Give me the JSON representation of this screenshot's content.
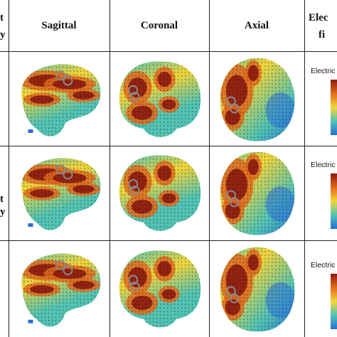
{
  "table": {
    "headers": {
      "left_partial_top": "t",
      "left_partial_bottom": "y",
      "sagittal": "Sagittal",
      "coronal": "Coronal",
      "axial": "Axial",
      "right_partial_top": "Elec",
      "right_partial_bottom": "fi"
    },
    "row_edge_marks": [
      "t",
      "y"
    ],
    "colorbar_labels": [
      "Electric",
      "Electric",
      "Electric f"
    ]
  },
  "colors": {
    "high": "#8b1a10",
    "mid_high": "#e06a1c",
    "mid": "#f2d43a",
    "mid_low": "#52c3b4",
    "low": "#2a6fd8",
    "arrow": "#111111",
    "marker": "#8a8a8a"
  }
}
